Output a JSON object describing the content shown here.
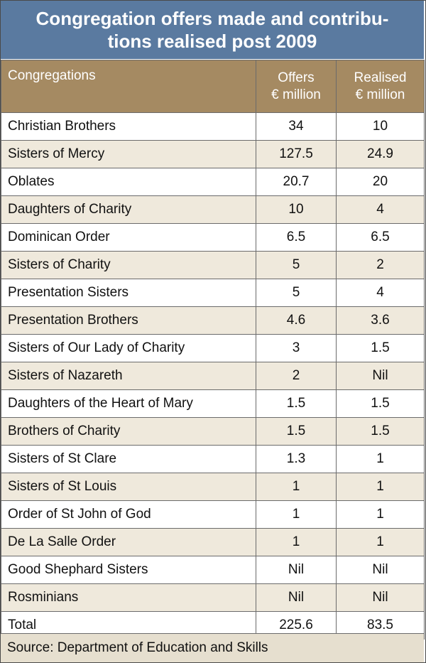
{
  "title_line1": "Congregation offers made and contribu-",
  "title_line2": "tions realised post 2009",
  "headers": {
    "col1": "Congregations",
    "col2_line1": "Offers",
    "col2_line2": "€ million",
    "col3_line1": "Realised",
    "col3_line2": "€ million"
  },
  "source": "Source: Department of Education and Skills",
  "colors": {
    "title_bg": "#5a7aa0",
    "header_bg": "#a58a62",
    "stripe_bg": "#efe9dc",
    "source_bg": "#e6dfcf"
  },
  "chart_data": {
    "type": "table",
    "title": "Congregation offers made and contributions realised post 2009",
    "columns": [
      "Congregations",
      "Offers € million",
      "Realised € million"
    ],
    "rows": [
      [
        "Christian Brothers",
        "34",
        "10"
      ],
      [
        "Sisters of Mercy",
        "127.5",
        "24.9"
      ],
      [
        "Oblates",
        "20.7",
        "20"
      ],
      [
        "Daughters of Charity",
        "10",
        "4"
      ],
      [
        "Dominican Order",
        "6.5",
        "6.5"
      ],
      [
        "Sisters of Charity",
        "5",
        "2"
      ],
      [
        "Presentation Sisters",
        "5",
        "4"
      ],
      [
        "Presentation Brothers",
        "4.6",
        "3.6"
      ],
      [
        "Sisters of Our Lady of Charity",
        "3",
        "1.5"
      ],
      [
        "Sisters of Nazareth",
        "2",
        "Nil"
      ],
      [
        "Daughters of the Heart of Mary",
        "1.5",
        "1.5"
      ],
      [
        "Brothers of Charity",
        "1.5",
        "1.5"
      ],
      [
        "Sisters of St Clare",
        "1.3",
        "1"
      ],
      [
        "Sisters of St Louis",
        "1",
        "1"
      ],
      [
        "Order of St John of God",
        "1",
        "1"
      ],
      [
        "De La Salle Order",
        "1",
        "1"
      ],
      [
        "Good Shephard Sisters",
        "Nil",
        "Nil"
      ],
      [
        "Rosminians",
        "Nil",
        "Nil"
      ]
    ],
    "total": [
      "Total",
      "225.6",
      "83.5"
    ]
  }
}
